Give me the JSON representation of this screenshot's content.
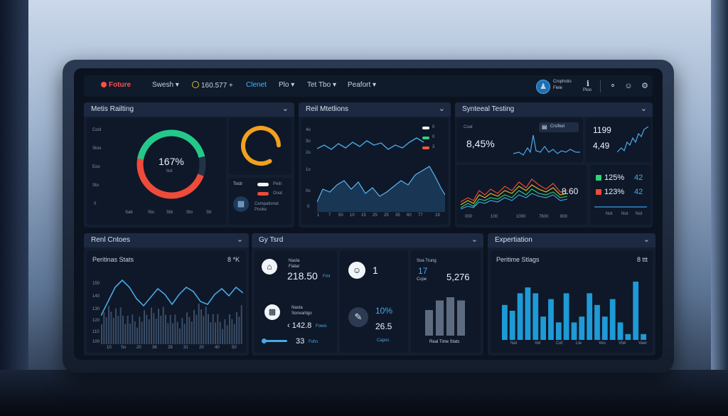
{
  "topbar": {
    "brand": "Foture",
    "menu": [
      "Swesh ▾",
      "160.577 +",
      "Clenet",
      "Plo ▾",
      "Tet Tbo ▾",
      "Peafort ▾"
    ],
    "account_line1": "Crophstio",
    "account_line2": "Fiele",
    "extra_label": "Ploo"
  },
  "panels": {
    "metric_rating": {
      "title": "Metis Railting",
      "gauge_value": "167%",
      "gauge_sub": "Itot",
      "y_ticks": [
        "Cool",
        "Stoo",
        "Eoo",
        "Sto",
        "0"
      ],
      "x_ticks": [
        "Sab",
        "Sto",
        "Stb",
        "Sto",
        "Stt"
      ],
      "legend": {
        "caption": "Tocb",
        "item1": "Petit",
        "item2": "Ooat",
        "footer_line1": "Cempational",
        "footer_line2": "Pooke"
      }
    },
    "rail_mentions": {
      "title": "Reil Mtetlions",
      "y_ticks": [
        "4o",
        "3o",
        "2o",
        "1o",
        "0o",
        "0"
      ],
      "x_ticks": [
        "1",
        "7",
        "50",
        "10",
        "15",
        "25",
        "25",
        "35",
        "60",
        "77",
        "19"
      ],
      "legend": [
        "0",
        "0",
        "3"
      ]
    },
    "synthesis_testing": {
      "title": "Synteeal Testing",
      "card1_label": "Coat",
      "card1_value": "8,45%",
      "card1_badge": "Crs/lkel",
      "card2_value1": "1199",
      "card2_value2": "4,49",
      "chart_value": "8.60",
      "x_ticks": [
        "000",
        "100",
        "1000",
        "7600",
        "800"
      ],
      "stat1": "125%",
      "stat1_num": "42",
      "stat2": "123%",
      "stat2_num": "42",
      "stat_x_ticks": [
        "Not",
        "Not",
        "Not"
      ]
    },
    "rent_options": {
      "title": "Renl Cntoes",
      "subtitle": "Peritinas Stats",
      "badge": "8 *K",
      "y_ticks": [
        "150",
        "140",
        "130",
        "120",
        "110",
        "100"
      ],
      "x_ticks": [
        "10",
        "So",
        "20",
        "36",
        "28",
        "31",
        "20",
        "40",
        "50"
      ]
    },
    "by_ford": {
      "title": "Gy Tsrd",
      "c1_label1": "Nasla",
      "c1_label2": "Fiatar",
      "c1_value": "218.50",
      "c1_unit": "Fmt",
      "c1_label3": "Nasta",
      "c1_label4": "Sonvartigo",
      "c1_value2": "‹ 142.8",
      "c1_unit2": "Fowis",
      "c1_value3": "33",
      "c1_unit3": "Fohs",
      "c2_value": "1",
      "c2_pct": "10%",
      "c2_value2": "26.5",
      "c2_label": "Capos",
      "c3_label1": "Soa Trung",
      "c3_value1": "17",
      "c3_label2": "Ccpe",
      "c3_value2": "5,276",
      "c3_caption": "Real Time Stats"
    },
    "experiation": {
      "title": "Expertiation",
      "subtitle": "Peritime Stlags",
      "badge": "8 ttt",
      "x_ticks": [
        "Nal",
        "Vel",
        "Cef",
        "Lle",
        "Ves",
        "Vtel",
        "Vaer"
      ]
    }
  },
  "chart_data": [
    {
      "type": "bar",
      "name": "experiation-bars",
      "values": [
        6,
        5,
        8,
        9,
        8,
        4,
        7,
        3,
        8,
        3,
        4,
        8,
        6,
        4,
        7,
        3,
        1,
        10,
        1
      ]
    },
    {
      "type": "bar",
      "name": "realtime-bars",
      "values": [
        8,
        11,
        12,
        11
      ]
    }
  ]
}
